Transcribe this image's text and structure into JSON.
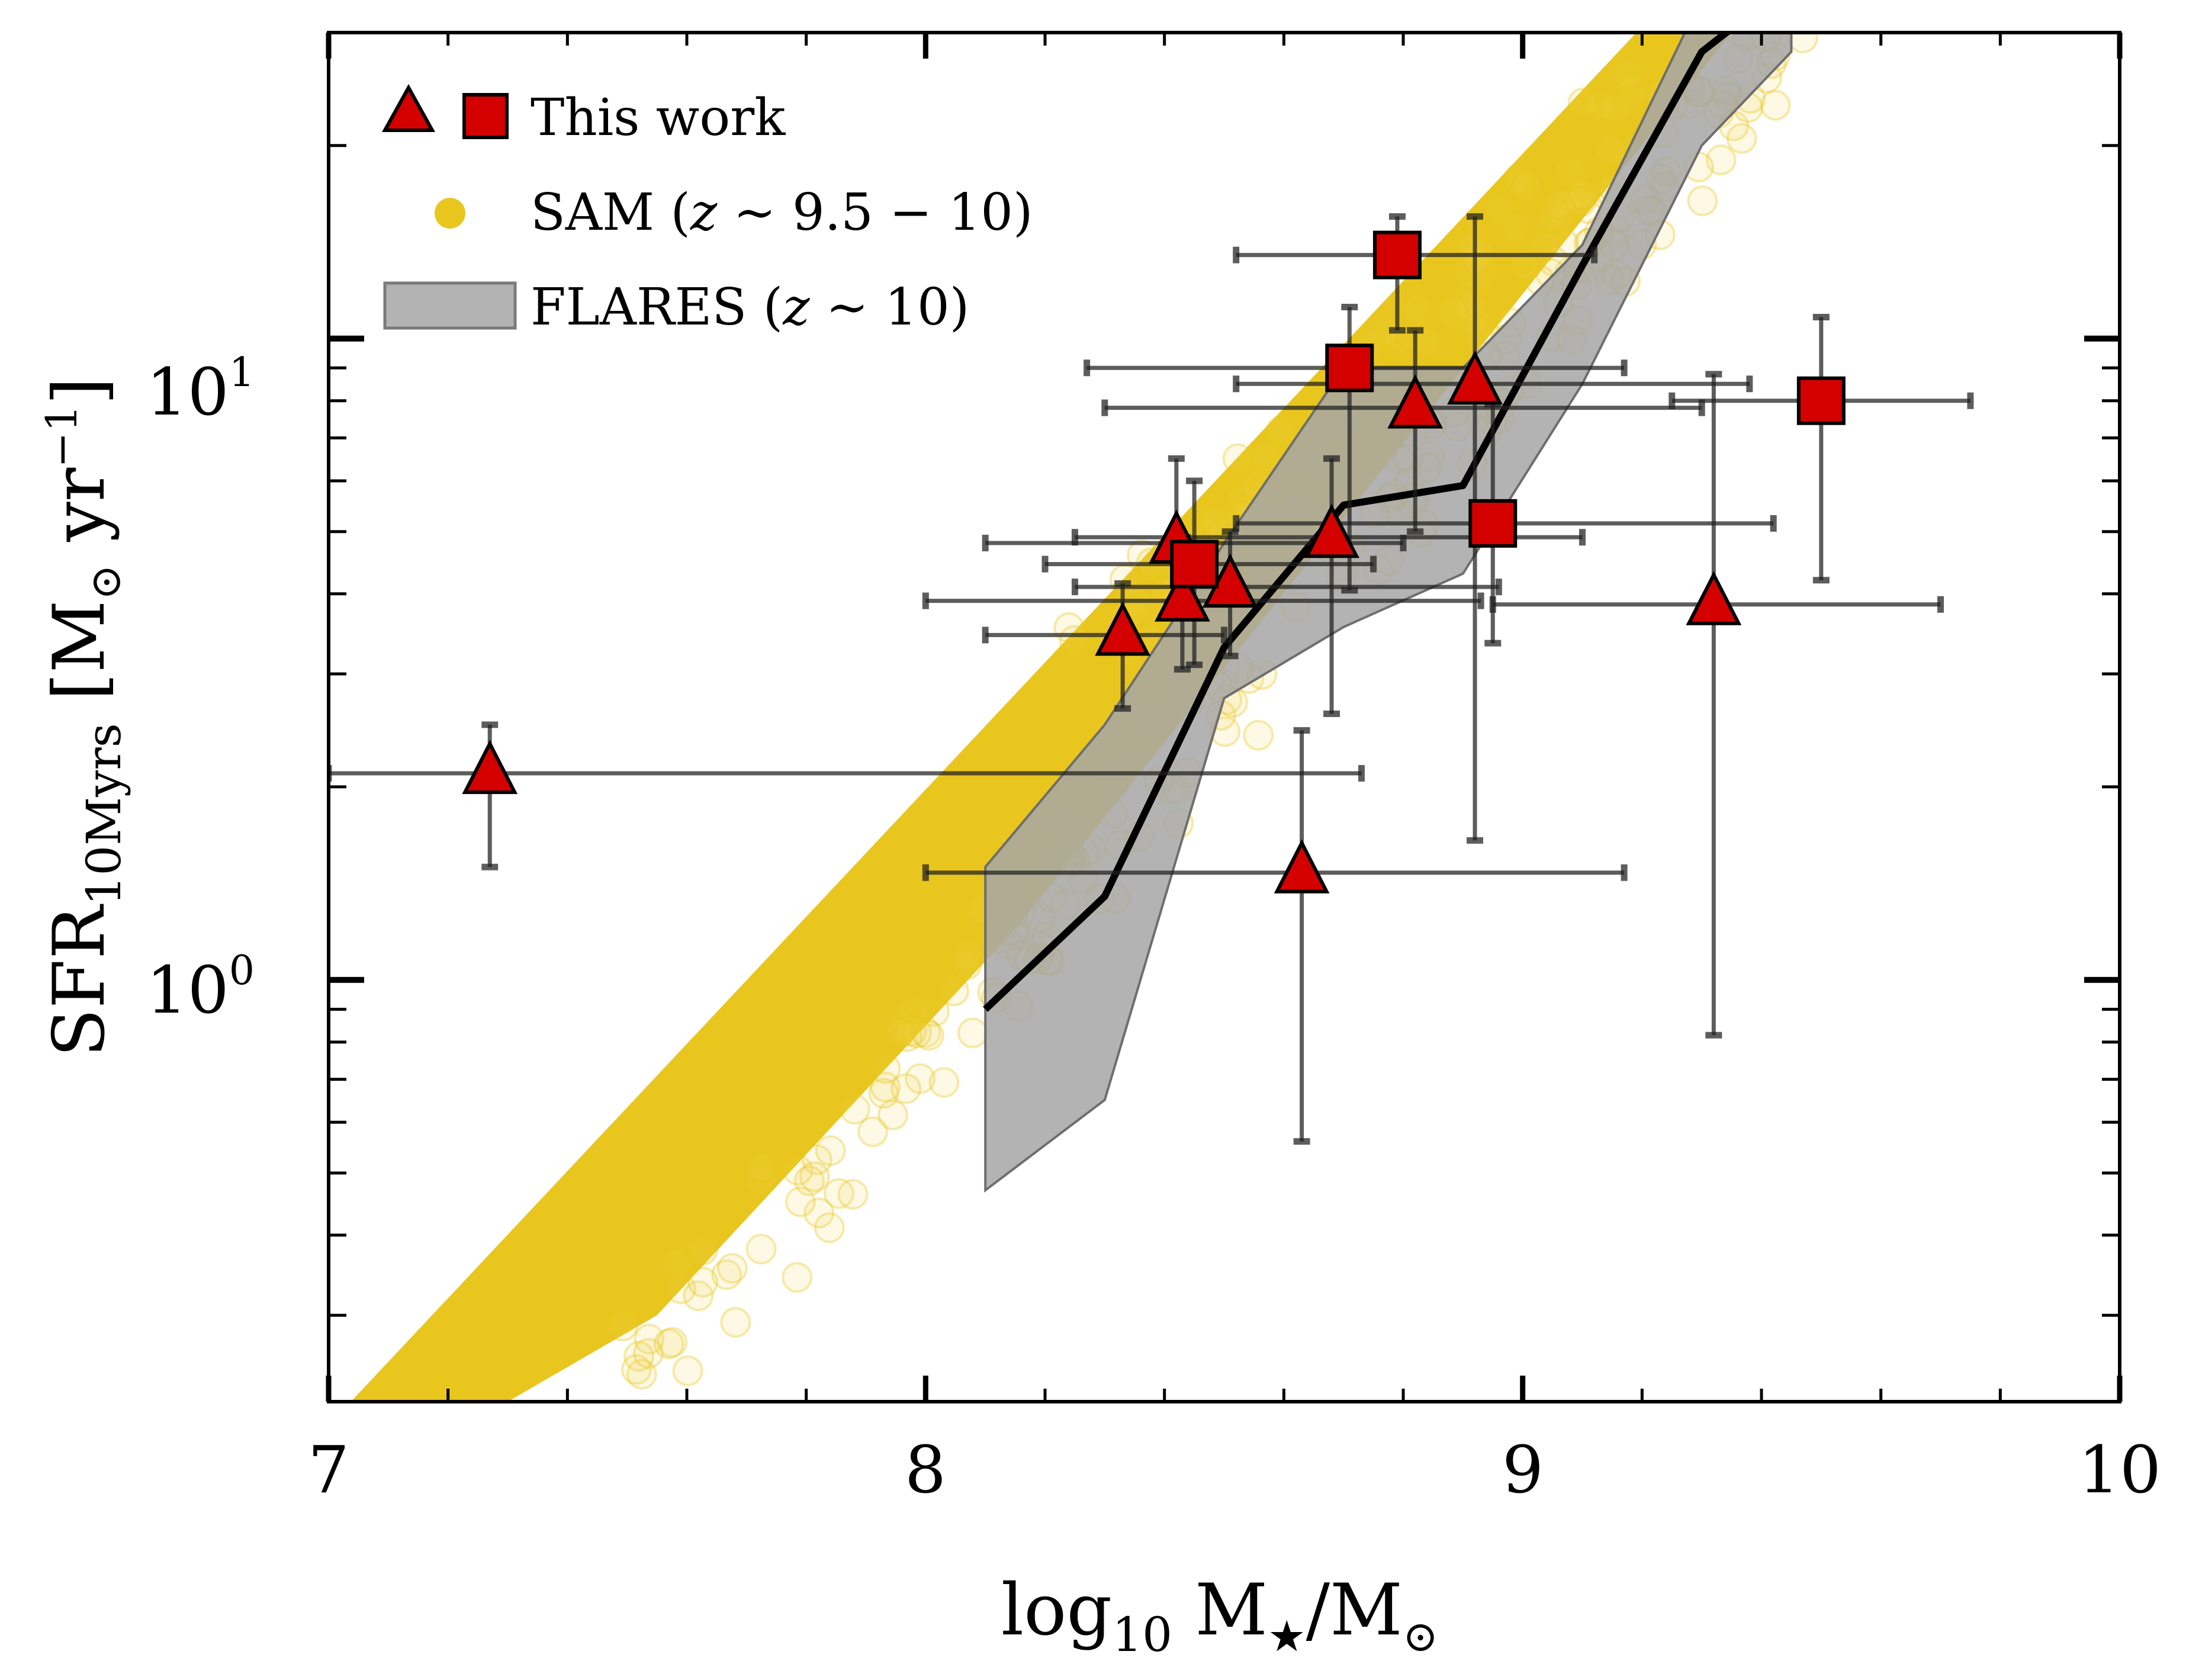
{
  "chart_data": {
    "type": "scatter",
    "title": "",
    "x_axis": {
      "label_parts": [
        "log",
        "10",
        " M",
        "★",
        "/M",
        "⊙"
      ],
      "range": [
        7,
        10
      ],
      "ticks": [
        7,
        8,
        9,
        10
      ],
      "tick_labels": [
        "7",
        "8",
        "9",
        "10"
      ],
      "minor_step": 0.2,
      "scale": "linear"
    },
    "y_axis": {
      "label_parts": [
        "SFR",
        "10Myrs",
        " [M",
        "⊙",
        " yr",
        "−1",
        "]"
      ],
      "range": [
        0.22,
        30
      ],
      "scale": "log",
      "ticks": [
        1,
        10
      ],
      "tick_labels": [
        {
          "base": "10",
          "exp": "0"
        },
        {
          "base": "10",
          "exp": "1"
        }
      ],
      "minor_ticks": [
        0.3,
        0.4,
        0.5,
        0.6,
        0.7,
        0.8,
        0.9,
        2,
        3,
        4,
        5,
        6,
        7,
        8,
        9,
        20,
        30
      ]
    },
    "grid": false,
    "legend_position": "top-left",
    "legend": [
      {
        "name": "This work",
        "marker": "triangle+square",
        "color": "#d40000"
      },
      {
        "name_parts": [
          "SAM (",
          "z",
          " ∼ 9.5 − 10)"
        ],
        "marker": "circle",
        "color": "#e8c61e"
      },
      {
        "name_parts": [
          "FLARES (",
          "z",
          " ∼ 10)"
        ],
        "marker": "band",
        "color": "#a6a6a6"
      }
    ],
    "series": [
      {
        "name": "This work (triangles)",
        "marker": "triangle",
        "color": "#d40000",
        "points": [
          {
            "x": 7.27,
            "y": 2.1,
            "xerr": [
              7.0,
              8.73
            ],
            "yerr": [
              1.5,
              2.5
            ]
          },
          {
            "x": 8.33,
            "y": 3.45,
            "xerr": [
              8.1,
              8.5
            ],
            "yerr": [
              2.65,
              4.15
            ]
          },
          {
            "x": 8.42,
            "y": 4.8,
            "xerr": [
              8.1,
              8.8
            ],
            "yerr": [
              3.7,
              6.5
            ]
          },
          {
            "x": 8.43,
            "y": 3.9,
            "xerr": [
              8.0,
              8.93
            ],
            "yerr": [
              3.05,
              4.9
            ]
          },
          {
            "x": 8.51,
            "y": 4.1,
            "xerr": [
              8.25,
              8.96
            ],
            "yerr": [
              3.2,
              5.0
            ]
          },
          {
            "x": 8.68,
            "y": 4.9,
            "xerr": [
              8.25,
              9.1
            ],
            "yerr": [
              2.6,
              6.5
            ]
          },
          {
            "x": 8.63,
            "y": 1.47,
            "xerr": [
              8.0,
              9.17
            ],
            "yerr": [
              0.56,
              2.45
            ]
          },
          {
            "x": 8.82,
            "y": 7.8,
            "xerr": [
              8.3,
              9.3
            ],
            "yerr": [
              5.0,
              10.3
            ]
          },
          {
            "x": 8.92,
            "y": 8.5,
            "xerr": [
              8.52,
              9.38
            ],
            "yerr": [
              1.65,
              15.5
            ]
          },
          {
            "x": 9.32,
            "y": 3.85,
            "xerr": [
              8.95,
              9.7
            ],
            "yerr": [
              0.82,
              8.8
            ]
          }
        ]
      },
      {
        "name": "This work (squares)",
        "marker": "square",
        "color": "#d40000",
        "points": [
          {
            "x": 8.45,
            "y": 4.45,
            "xerr": [
              8.2,
              8.75
            ],
            "yerr": [
              3.1,
              6.0
            ]
          },
          {
            "x": 8.71,
            "y": 9.0,
            "xerr": [
              8.27,
              9.17
            ],
            "yerr": [
              4.05,
              11.2
            ]
          },
          {
            "x": 8.79,
            "y": 13.5,
            "xerr": [
              8.52,
              9.12
            ],
            "yerr": [
              10.3,
              15.5
            ]
          },
          {
            "x": 8.95,
            "y": 5.15,
            "xerr": [
              8.52,
              9.42
            ],
            "yerr": [
              3.35,
              7.9
            ]
          },
          {
            "x": 9.5,
            "y": 8.0,
            "xerr": [
              9.25,
              9.75
            ],
            "yerr": [
              4.2,
              10.8
            ]
          }
        ]
      },
      {
        "name": "FLARES (z ~ 10) median",
        "type": "line",
        "color": "#000000",
        "x": [
          8.1,
          8.3,
          8.5,
          8.7,
          8.9,
          9.1,
          9.3,
          9.45
        ],
        "y": [
          0.9,
          1.35,
          3.3,
          5.5,
          5.9,
          13.0,
          28.0,
          36.0
        ]
      },
      {
        "name": "FLARES (z ~ 10) range",
        "type": "band",
        "color": "#a6a6a6",
        "x": [
          8.1,
          8.3,
          8.5,
          8.7,
          8.9,
          9.1,
          9.3,
          9.45
        ],
        "y_low": [
          0.47,
          0.65,
          2.75,
          3.55,
          4.3,
          8.5,
          20.0,
          28.0
        ],
        "y_high": [
          1.5,
          2.5,
          4.8,
          9.0,
          9.0,
          14.0,
          34.0,
          40.0
        ]
      },
      {
        "name": "SAM (z ~ 9.5 - 10)",
        "type": "relation-cloud",
        "color": "#e8c61e",
        "upper_edge": {
          "x": [
            7.0,
            8.3,
            9.25
          ],
          "y": [
            0.22,
            2.5,
            30.0
          ]
        },
        "lower_edge": {
          "x": [
            7.5,
            8.2,
            9.45
          ],
          "y": [
            0.22,
            0.9,
            30.0
          ]
        }
      }
    ]
  }
}
